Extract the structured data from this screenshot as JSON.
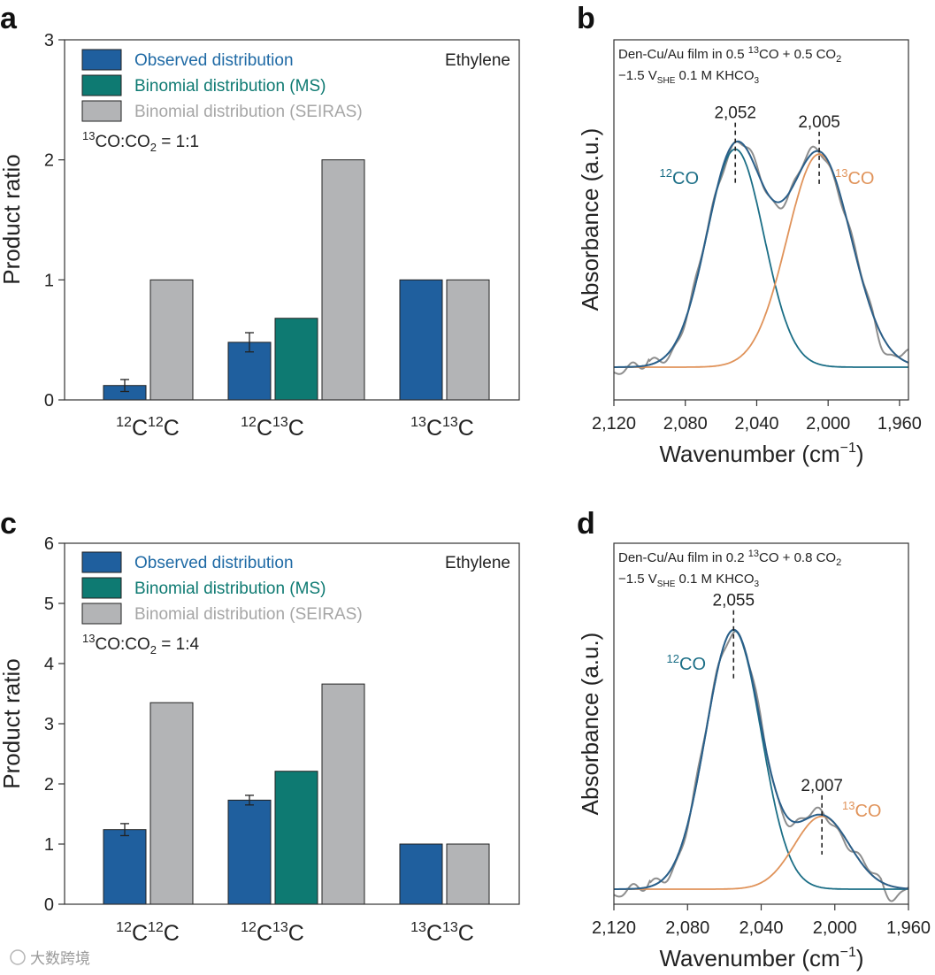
{
  "colors": {
    "observed": "#1f5f9e",
    "binomial_ms": "#0e7a72",
    "binomial_seiras": "#b3b4b6",
    "fit_12co": "#1b6e86",
    "fit_13co": "#e0935a",
    "sum_fit": "#2a5f8a",
    "raw_spectrum": "#8e8e8e",
    "legend_observed_text": "#1f6aa5",
    "legend_ms_text": "#0e7a72",
    "legend_seiras_text": "#a6a6a6"
  },
  "panels": {
    "a": {
      "letter": "a"
    },
    "b": {
      "letter": "b"
    },
    "c": {
      "letter": "c"
    },
    "d": {
      "letter": "d"
    }
  },
  "legend": {
    "observed": "Observed distribution",
    "binomial_ms": "Binomial distribution (MS)",
    "binomial_seiras": "Binomial distribution (SEIRAS)"
  },
  "chart_data": [
    {
      "panel": "a",
      "type": "bar",
      "ylabel": "Product ratio",
      "ylim": [
        0,
        3
      ],
      "yticks": [
        "0",
        "1",
        "2",
        "3"
      ],
      "product": "Ethylene",
      "ratio_label": {
        "pre": "13",
        "mid": "CO:CO",
        "sub": "2",
        "post": " = 1:1"
      },
      "categories": [
        {
          "a": "12",
          "b": "C",
          "c": "12",
          "d": "C"
        },
        {
          "a": "12",
          "b": "C",
          "c": "13",
          "d": "C"
        },
        {
          "a": "13",
          "b": "C",
          "c": "13",
          "d": "C"
        }
      ],
      "series": [
        {
          "name": "Observed distribution",
          "values": [
            0.12,
            0.48,
            1.0
          ],
          "errors": [
            0.05,
            0.08,
            0
          ]
        },
        {
          "name": "Binomial distribution (MS)",
          "values": [
            null,
            0.68,
            null
          ]
        },
        {
          "name": "Binomial distribution (SEIRAS)",
          "values": [
            1.0,
            2.0,
            1.0
          ]
        }
      ]
    },
    {
      "panel": "b",
      "type": "line",
      "ylabel": "Absorbance (a.u.)",
      "xlabel_main": "Wavenumber (cm",
      "xlabel_sup": "−1",
      "xlabel_end": ")",
      "xlim": [
        2120,
        1955
      ],
      "xticks": [
        2120,
        2080,
        2040,
        2000,
        1960
      ],
      "xtick_labels": [
        "2,120",
        "2,080",
        "2,040",
        "2,000",
        "1,960"
      ],
      "condition_line1": {
        "a": "Den-Cu/Au film in 0.5 ",
        "sup": "13",
        "b": "CO + 0.5 CO",
        "sub": "2"
      },
      "condition_line2": {
        "a": "−1.5 V",
        "sub": "SHE",
        "b": " 0.1 M KHCO",
        "sub2": "3"
      },
      "peaks": [
        {
          "label": "2,052",
          "position": 2052,
          "species": {
            "sup": "12",
            "base": "CO"
          },
          "height": 0.88,
          "width": 16
        },
        {
          "label": "2,005",
          "position": 2005,
          "species": {
            "sup": "13",
            "base": "CO"
          },
          "height": 0.86,
          "width": 18
        }
      ]
    },
    {
      "panel": "c",
      "type": "bar",
      "ylabel": "Product ratio",
      "ylim": [
        0,
        6
      ],
      "yticks": [
        "0",
        "1",
        "2",
        "3",
        "4",
        "5",
        "6"
      ],
      "product": "Ethylene",
      "ratio_label": {
        "pre": "13",
        "mid": "CO:CO",
        "sub": "2",
        "post": " = 1:4"
      },
      "categories": [
        {
          "a": "12",
          "b": "C",
          "c": "12",
          "d": "C"
        },
        {
          "a": "12",
          "b": "C",
          "c": "13",
          "d": "C"
        },
        {
          "a": "13",
          "b": "C",
          "c": "13",
          "d": "C"
        }
      ],
      "series": [
        {
          "name": "Observed distribution",
          "values": [
            1.24,
            1.73,
            1.0
          ],
          "errors": [
            0.1,
            0.08,
            0
          ]
        },
        {
          "name": "Binomial distribution (MS)",
          "values": [
            null,
            2.21,
            null
          ]
        },
        {
          "name": "Binomial distribution (SEIRAS)",
          "values": [
            3.35,
            3.66,
            1.0
          ]
        }
      ]
    },
    {
      "panel": "d",
      "type": "line",
      "ylabel": "Absorbance (a.u.)",
      "xlabel_main": "Wavenumber (cm",
      "xlabel_sup": "−1",
      "xlabel_end": ")",
      "xlim": [
        2120,
        1960
      ],
      "xticks": [
        2120,
        2080,
        2040,
        2000,
        1960
      ],
      "xtick_labels": [
        "2,120",
        "2,080",
        "2,040",
        "2,000",
        "1,960"
      ],
      "condition_line1": {
        "a": "Den-Cu/Au film in 0.2 ",
        "sup": "13",
        "b": "CO + 0.8 CO",
        "sub": "2"
      },
      "condition_line2": {
        "a": "−1.5 V",
        "sub": "SHE",
        "b": " 0.1 M KHCO",
        "sub2": "3"
      },
      "peaks": [
        {
          "label": "2,055",
          "position": 2055,
          "species": {
            "sup": "12",
            "base": "CO"
          },
          "height": 0.96,
          "width": 15
        },
        {
          "label": "2,007",
          "position": 2007,
          "species": {
            "sup": "13",
            "base": "CO"
          },
          "height": 0.27,
          "width": 15
        }
      ]
    }
  ],
  "watermark": "大数跨境"
}
